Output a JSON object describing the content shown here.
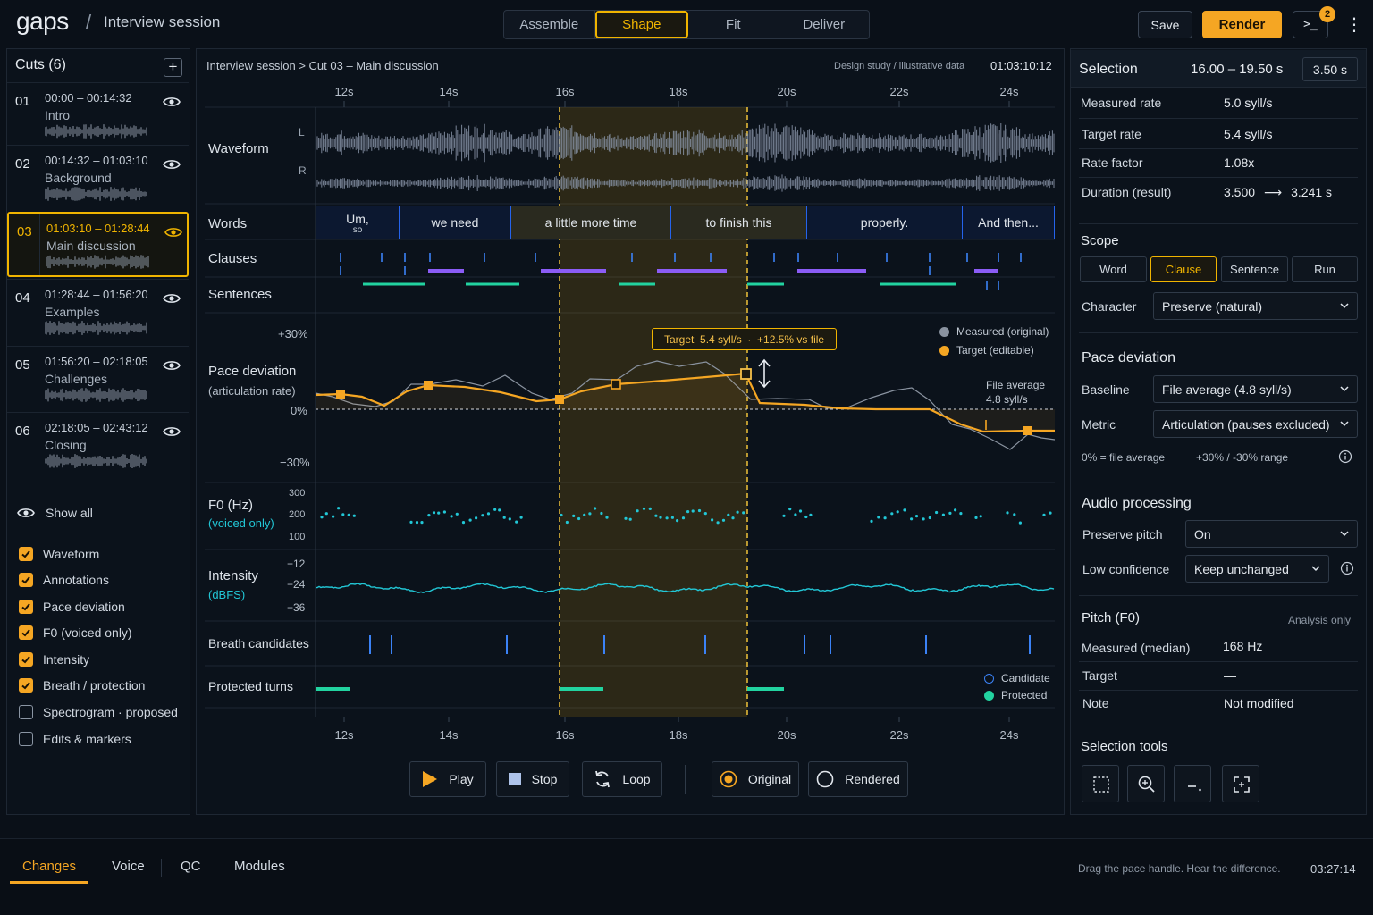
{
  "app": {
    "logo": "gaps",
    "separator": "/",
    "session": "Interview session"
  },
  "stages": [
    {
      "label": "Assemble",
      "active": false
    },
    {
      "label": "Shape",
      "active": true
    },
    {
      "label": "Fit",
      "active": false
    },
    {
      "label": "Deliver",
      "active": false
    }
  ],
  "actions": {
    "save": "Save",
    "render": "Render",
    "terminal_badge": "2"
  },
  "cuts": {
    "title": "Cuts (6)",
    "items": [
      {
        "num": "01",
        "range": "00:00 – 00:14:32",
        "name": "Intro",
        "selected": false
      },
      {
        "num": "02",
        "range": "00:14:32 – 01:03:10",
        "name": "Background",
        "selected": false
      },
      {
        "num": "03",
        "range": "01:03:10 – 01:28:44",
        "name": "Main discussion",
        "selected": true
      },
      {
        "num": "04",
        "range": "01:28:44 – 01:56:20",
        "name": "Examples",
        "selected": false
      },
      {
        "num": "05",
        "range": "01:56:20 – 02:18:05",
        "name": "Challenges",
        "selected": false
      },
      {
        "num": "06",
        "range": "02:18:05 – 02:43:12",
        "name": "Closing",
        "selected": false
      }
    ]
  },
  "layers": {
    "show_all": "Show all",
    "items": [
      {
        "label": "Waveform",
        "checked": true
      },
      {
        "label": "Annotations",
        "checked": true
      },
      {
        "label": "Pace deviation",
        "checked": true
      },
      {
        "label": "F0 (voiced only)",
        "checked": true
      },
      {
        "label": "Intensity",
        "checked": true
      },
      {
        "label": "Breath / protection",
        "checked": true
      },
      {
        "label": "Spectrogram · proposed",
        "checked": false
      },
      {
        "label": "Edits & markers",
        "checked": false
      }
    ]
  },
  "main": {
    "breadcrumb": "Interview session  >  Cut 03 – Main discussion",
    "design_note": "Design study / illustrative data",
    "timecode": "01:03:10:12",
    "time_ticks": [
      "12s",
      "14s",
      "16s",
      "18s",
      "20s",
      "22s",
      "24s"
    ],
    "rows": {
      "waveform": "Waveform",
      "ch_l": "L",
      "ch_r": "R",
      "words": "Words",
      "clauses": "Clauses",
      "sentences": "Sentences",
      "pace": "Pace deviation",
      "pace_sub": "(articulation rate)",
      "f0": "F0 (Hz)",
      "f0_sub": "(voiced only)",
      "intensity": "Intensity",
      "intensity_sub": "(dBFS)",
      "breath": "Breath candidates",
      "protected": "Protected turns"
    },
    "words": [
      "Um,",
      "we need",
      "a little more time",
      "to finish this",
      "properly.",
      "And then..."
    ],
    "words_sub": "so",
    "pace_axis": [
      "+30%",
      "0%",
      "−30%"
    ],
    "f0_axis": [
      "300",
      "200",
      "100"
    ],
    "intensity_axis": [
      "−12",
      "−24",
      "−36"
    ],
    "legend_measured": "Measured (original)",
    "legend_target": "Target (editable)",
    "file_avg_label": "File average",
    "file_avg_value": "4.8 syll/s",
    "target_tooltip": "Target  5.4 syll/s  ·  +12.5% vs file",
    "legend_candidate": "Candidate",
    "legend_protected": "Protected",
    "colors": {
      "accent": "#f5a623",
      "measured": "#8a93a0",
      "f0": "#22c7d6",
      "protected": "#22d3a0",
      "clause": "#8b5cf6",
      "breath": "#3b82f6"
    }
  },
  "transport": {
    "play": "Play",
    "stop": "Stop",
    "loop": "Loop",
    "original": "Original",
    "rendered": "Rendered",
    "mode": "original"
  },
  "selection": {
    "title": "Selection",
    "range": "16.00 – 19.50 s",
    "duration": "3.50 s",
    "rows": [
      {
        "label": "Measured rate",
        "value": "5.0 syll/s"
      },
      {
        "label": "Target rate",
        "value": "5.4 syll/s"
      },
      {
        "label": "Rate factor",
        "value": "1.08x"
      }
    ],
    "duration_label": "Duration (result)",
    "duration_from": "3.500",
    "duration_arrow": "⟶",
    "duration_to": "3.241 s"
  },
  "scope": {
    "title": "Scope",
    "options": [
      {
        "label": "Word",
        "active": false
      },
      {
        "label": "Clause",
        "active": true
      },
      {
        "label": "Sentence",
        "active": false
      },
      {
        "label": "Run",
        "active": false
      }
    ],
    "character_label": "Character",
    "character_value": "Preserve (natural)"
  },
  "pace_deviation": {
    "title": "Pace deviation",
    "baseline_label": "Baseline",
    "baseline_value": "File average (4.8 syll/s)",
    "metric_label": "Metric",
    "metric_value": "Articulation (pauses excluded)",
    "note_left": "0% = file average",
    "note_right": "+30% / -30% range"
  },
  "audio": {
    "title": "Audio processing",
    "pitch_label": "Preserve pitch",
    "pitch_value": "On",
    "lowconf_label": "Low confidence",
    "lowconf_value": "Keep unchanged"
  },
  "pitch": {
    "title": "Pitch (F0)",
    "note": "Analysis only",
    "rows": [
      {
        "label": "Measured (median)",
        "value": "168 Hz"
      },
      {
        "label": "Target",
        "value": "—"
      },
      {
        "label": "Note",
        "value": "Not modified"
      }
    ]
  },
  "tools": {
    "title": "Selection tools"
  },
  "bottom": {
    "tabs": [
      {
        "label": "Changes",
        "active": true
      },
      {
        "label": "Voice",
        "active": false
      },
      {
        "label": "QC",
        "active": false
      },
      {
        "label": "Modules",
        "active": false
      }
    ],
    "hint": "Drag the pace handle. Hear the difference.",
    "time": "03:27:14"
  }
}
